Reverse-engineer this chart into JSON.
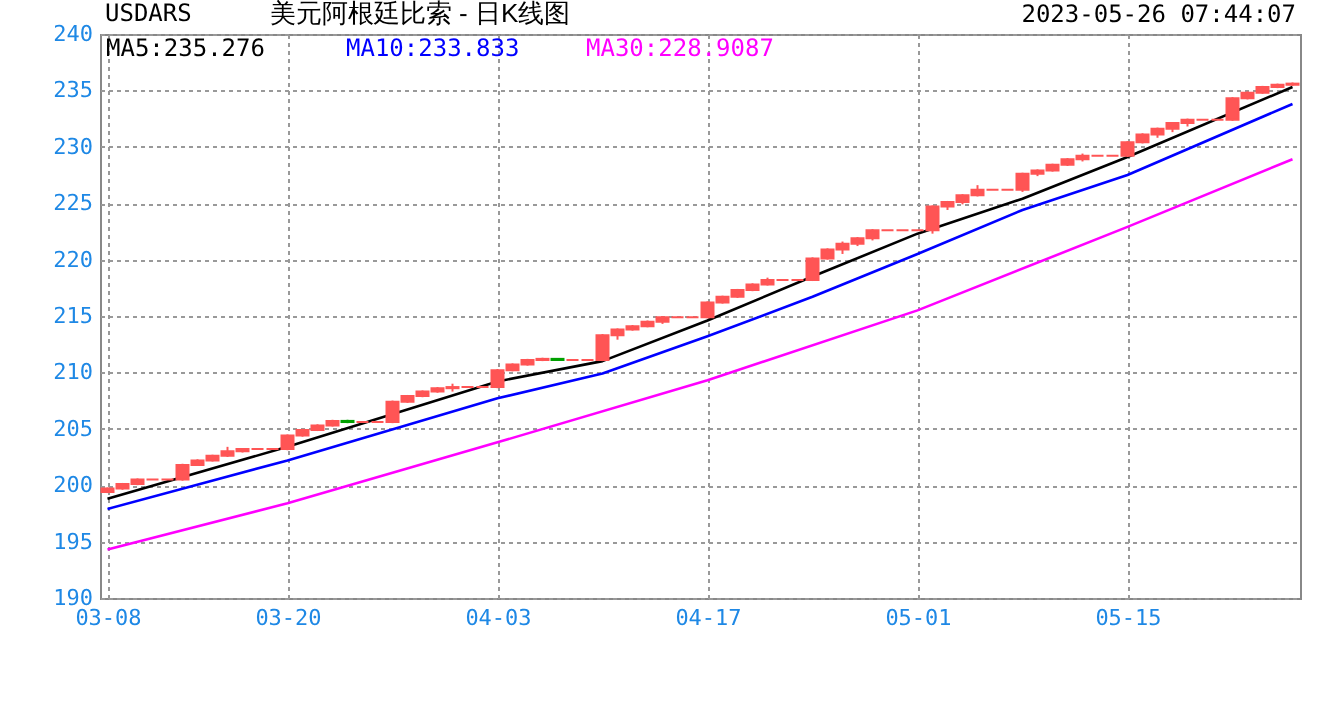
{
  "chart_data": {
    "type": "candlestick",
    "title": "美元阿根廷比索 - 日K线图",
    "ylabel": "USDARS",
    "annotations": [
      "2023-05-26 07:44:07"
    ],
    "x": [
      "2023-03-08",
      "2023-03-09",
      "2023-03-10",
      "2023-03-11",
      "2023-03-12",
      "2023-03-13",
      "2023-03-14",
      "2023-03-15",
      "2023-03-16",
      "2023-03-17",
      "2023-03-18",
      "2023-03-19",
      "2023-03-20",
      "2023-03-21",
      "2023-03-22",
      "2023-03-23",
      "2023-03-24",
      "2023-03-25",
      "2023-03-26",
      "2023-03-27",
      "2023-03-28",
      "2023-03-29",
      "2023-03-30",
      "2023-03-31",
      "2023-04-01",
      "2023-04-02",
      "2023-04-03",
      "2023-04-04",
      "2023-04-05",
      "2023-04-06",
      "2023-04-07",
      "2023-04-08",
      "2023-04-09",
      "2023-04-10",
      "2023-04-11",
      "2023-04-12",
      "2023-04-13",
      "2023-04-14",
      "2023-04-15",
      "2023-04-16",
      "2023-04-17",
      "2023-04-18",
      "2023-04-19",
      "2023-04-20",
      "2023-04-21",
      "2023-04-22",
      "2023-04-23",
      "2023-04-24",
      "2023-04-25",
      "2023-04-26",
      "2023-04-27",
      "2023-04-28",
      "2023-04-29",
      "2023-04-30",
      "2023-05-01",
      "2023-05-02",
      "2023-05-03",
      "2023-05-04",
      "2023-05-05",
      "2023-05-06",
      "2023-05-07",
      "2023-05-08",
      "2023-05-09",
      "2023-05-10",
      "2023-05-11",
      "2023-05-12",
      "2023-05-13",
      "2023-05-14",
      "2023-05-15",
      "2023-05-16",
      "2023-05-17",
      "2023-05-18",
      "2023-05-19",
      "2023-05-20",
      "2023-05-21",
      "2023-05-22",
      "2023-05-23",
      "2023-05-24",
      "2023-05-25",
      "2023-05-26"
    ],
    "ohlc": [
      [
        199.4,
        199.8,
        199.3,
        199.7
      ],
      [
        199.7,
        200.2,
        199.6,
        200.1
      ],
      [
        200.1,
        200.6,
        200.0,
        200.5
      ],
      [
        200.5,
        200.5,
        200.5,
        200.5
      ],
      [
        200.5,
        200.5,
        200.5,
        200.5
      ],
      [
        200.5,
        201.9,
        200.4,
        201.8
      ],
      [
        201.8,
        202.3,
        201.7,
        202.2
      ],
      [
        202.2,
        202.7,
        202.1,
        202.6
      ],
      [
        202.6,
        203.4,
        202.5,
        203.0
      ],
      [
        203.0,
        203.3,
        202.9,
        203.2
      ],
      [
        203.2,
        203.2,
        203.2,
        203.2
      ],
      [
        203.2,
        203.2,
        203.2,
        203.2
      ],
      [
        203.2,
        204.5,
        203.1,
        204.4
      ],
      [
        204.4,
        205.0,
        204.3,
        204.9
      ],
      [
        204.9,
        205.4,
        204.8,
        205.3
      ],
      [
        205.3,
        205.8,
        205.2,
        205.7
      ],
      [
        205.7,
        205.8,
        205.5,
        205.6
      ],
      [
        205.6,
        205.6,
        205.6,
        205.6
      ],
      [
        205.6,
        205.6,
        205.6,
        205.6
      ],
      [
        205.6,
        207.5,
        205.5,
        207.4
      ],
      [
        207.4,
        208.0,
        207.3,
        207.9
      ],
      [
        207.9,
        208.4,
        207.8,
        208.3
      ],
      [
        208.3,
        208.7,
        208.2,
        208.6
      ],
      [
        208.6,
        209.0,
        208.3,
        208.7
      ],
      [
        208.7,
        208.7,
        208.7,
        208.7
      ],
      [
        208.7,
        208.7,
        208.7,
        208.7
      ],
      [
        208.7,
        210.3,
        208.6,
        210.2
      ],
      [
        210.2,
        210.8,
        210.1,
        210.7
      ],
      [
        210.7,
        211.2,
        210.6,
        211.1
      ],
      [
        211.1,
        211.3,
        211.0,
        211.2
      ],
      [
        211.2,
        211.2,
        211.1,
        211.1
      ],
      [
        211.1,
        211.1,
        211.1,
        211.1
      ],
      [
        211.1,
        211.1,
        211.1,
        211.1
      ],
      [
        211.1,
        213.4,
        211.0,
        213.3
      ],
      [
        213.3,
        213.9,
        212.9,
        213.8
      ],
      [
        213.8,
        214.2,
        213.7,
        214.1
      ],
      [
        214.1,
        214.6,
        214.0,
        214.5
      ],
      [
        214.5,
        215.0,
        214.3,
        214.9
      ],
      [
        214.9,
        214.9,
        214.9,
        214.9
      ],
      [
        214.9,
        214.9,
        214.9,
        214.9
      ],
      [
        214.9,
        216.3,
        214.8,
        216.2
      ],
      [
        216.2,
        216.8,
        216.1,
        216.7
      ],
      [
        216.7,
        217.4,
        216.6,
        217.3
      ],
      [
        217.3,
        217.9,
        217.2,
        217.8
      ],
      [
        217.8,
        218.4,
        217.7,
        218.2
      ],
      [
        218.2,
        218.2,
        218.2,
        218.2
      ],
      [
        218.2,
        218.2,
        218.2,
        218.2
      ],
      [
        218.2,
        220.2,
        218.1,
        220.1
      ],
      [
        220.1,
        221.0,
        220.0,
        220.9
      ],
      [
        220.9,
        221.6,
        220.5,
        221.4
      ],
      [
        221.4,
        222.0,
        221.2,
        221.9
      ],
      [
        221.9,
        222.7,
        221.7,
        222.6
      ],
      [
        222.6,
        222.6,
        222.6,
        222.6
      ],
      [
        222.6,
        222.6,
        222.6,
        222.6
      ],
      [
        222.6,
        222.6,
        222.6,
        222.6
      ],
      [
        222.6,
        224.8,
        222.3,
        224.7
      ],
      [
        224.7,
        225.2,
        224.4,
        225.1
      ],
      [
        225.1,
        225.8,
        224.9,
        225.7
      ],
      [
        225.7,
        226.6,
        225.6,
        226.2
      ],
      [
        226.2,
        226.2,
        226.2,
        226.2
      ],
      [
        226.2,
        226.2,
        226.2,
        226.2
      ],
      [
        226.2,
        227.7,
        226.0,
        227.6
      ],
      [
        227.6,
        228.0,
        227.4,
        227.9
      ],
      [
        227.9,
        228.5,
        227.8,
        228.4
      ],
      [
        228.4,
        229.0,
        228.3,
        228.9
      ],
      [
        228.9,
        229.4,
        228.7,
        229.2
      ],
      [
        229.2,
        229.2,
        229.2,
        229.2
      ],
      [
        229.2,
        229.2,
        229.2,
        229.2
      ],
      [
        229.2,
        230.5,
        229.1,
        230.4
      ],
      [
        230.4,
        231.2,
        230.3,
        231.1
      ],
      [
        231.1,
        231.7,
        230.8,
        231.6
      ],
      [
        231.6,
        232.2,
        231.3,
        232.1
      ],
      [
        232.1,
        232.5,
        231.8,
        232.4
      ],
      [
        232.4,
        232.4,
        232.4,
        232.4
      ],
      [
        232.4,
        232.4,
        232.4,
        232.4
      ],
      [
        232.4,
        234.4,
        232.3,
        234.3
      ],
      [
        234.3,
        234.9,
        234.2,
        234.8
      ],
      [
        234.8,
        235.4,
        234.7,
        235.3
      ],
      [
        235.3,
        235.6,
        235.2,
        235.5
      ],
      [
        235.5,
        235.7,
        235.4,
        235.6
      ]
    ],
    "colors": [
      "#ff5555",
      "#ff5555",
      "#ff5555",
      "#ff5555",
      "#ff5555",
      "#ff5555",
      "#ff5555",
      "#ff5555",
      "#ff5555",
      "#ff5555",
      "#ff5555",
      "#ff5555",
      "#ff5555",
      "#ff5555",
      "#ff5555",
      "#ff5555",
      "#00a000",
      "#ff5555",
      "#ff5555",
      "#ff5555",
      "#ff5555",
      "#ff5555",
      "#ff5555",
      "#ff5555",
      "#ff5555",
      "#ff5555",
      "#ff5555",
      "#ff5555",
      "#ff5555",
      "#ff5555",
      "#00a000",
      "#ff5555",
      "#ff5555",
      "#ff5555",
      "#ff5555",
      "#ff5555",
      "#ff5555",
      "#ff5555",
      "#ff5555",
      "#ff5555",
      "#ff5555",
      "#ff5555",
      "#ff5555",
      "#ff5555",
      "#ff5555",
      "#ff5555",
      "#ff5555",
      "#ff5555",
      "#ff5555",
      "#ff5555",
      "#ff5555",
      "#ff5555",
      "#ff5555",
      "#ff5555",
      "#ff5555",
      "#ff5555",
      "#ff5555",
      "#ff5555",
      "#ff5555",
      "#ff5555",
      "#ff5555",
      "#ff5555",
      "#ff5555",
      "#ff5555",
      "#ff5555",
      "#ff5555",
      "#ff5555",
      "#ff5555",
      "#ff5555",
      "#ff5555",
      "#ff5555",
      "#ff5555",
      "#ff5555",
      "#ff5555",
      "#ff5555",
      "#ff5555",
      "#ff5555",
      "#ff5555",
      "#ff5555",
      "#ff5555"
    ],
    "series": [
      {
        "name": "MA5:235.276",
        "type": "line",
        "color": "#000000",
        "x": [
          "2023-03-08",
          "2023-03-20",
          "2023-04-03",
          "2023-04-10",
          "2023-04-17",
          "2023-04-24",
          "2023-05-01",
          "2023-05-08",
          "2023-05-15",
          "2023-05-26"
        ],
        "values": [
          198.8,
          203.4,
          209.2,
          211.0,
          214.6,
          218.5,
          222.3,
          225.4,
          229.1,
          235.3
        ]
      },
      {
        "name": "MA10:233.833",
        "type": "line",
        "color": "#0000ff",
        "x": [
          "2023-03-08",
          "2023-03-20",
          "2023-04-03",
          "2023-04-10",
          "2023-04-17",
          "2023-04-24",
          "2023-05-01",
          "2023-05-08",
          "2023-05-15",
          "2023-05-26"
        ],
        "values": [
          197.9,
          202.2,
          207.7,
          209.9,
          213.2,
          216.7,
          220.5,
          224.4,
          227.5,
          233.8
        ]
      },
      {
        "name": "MA30:228.9087",
        "type": "line",
        "color": "#ff00ff",
        "x": [
          "2023-03-08",
          "2023-03-20",
          "2023-04-03",
          "2023-04-17",
          "2023-05-01",
          "2023-05-15",
          "2023-05-26"
        ],
        "values": [
          194.3,
          198.4,
          203.8,
          209.3,
          215.5,
          222.9,
          228.9
        ]
      }
    ],
    "xlim": [
      "2023-03-07T12:00",
      "2023-05-26T12:00"
    ],
    "xticks": [
      {
        "value": "2023-03-08",
        "label": "03-08"
      },
      {
        "value": "2023-03-20",
        "label": "03-20"
      },
      {
        "value": "2023-04-03",
        "label": "04-03"
      },
      {
        "value": "2023-04-17",
        "label": "04-17"
      },
      {
        "value": "2023-05-01",
        "label": "05-01"
      },
      {
        "value": "2023-05-15",
        "label": "05-15"
      }
    ],
    "ylim": [
      190,
      240
    ],
    "yticks": [
      190,
      195,
      200,
      205,
      210,
      215,
      220,
      225,
      230,
      235,
      240
    ],
    "grid": true,
    "legend": "top left"
  }
}
